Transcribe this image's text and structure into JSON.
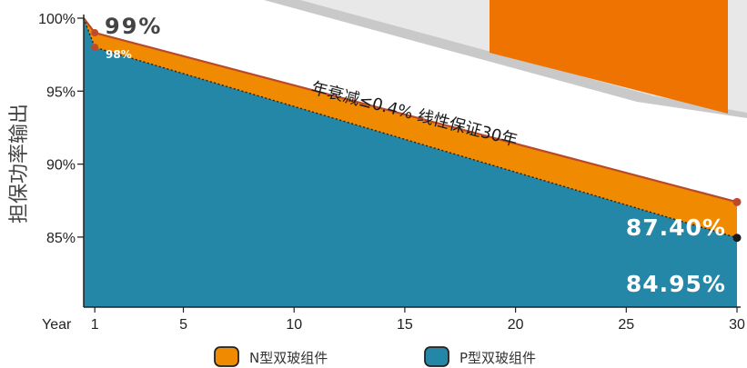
{
  "chart_data": {
    "type": "area",
    "ylabel": "担保功率输出",
    "x_axis_label": "Year",
    "x_ticks": [
      1,
      5,
      10,
      15,
      20,
      25,
      30
    ],
    "y_ticks": [
      "100%",
      "95%",
      "90%",
      "85%"
    ],
    "y_tick_values": [
      100,
      95,
      90,
      85
    ],
    "xlim": [
      0.5,
      30
    ],
    "ylim": [
      80.2,
      100
    ],
    "series": [
      {
        "name": "N型双玻组件",
        "color": "#F08A00",
        "line_color": "#B84A2A",
        "x": [
          0.5,
          1,
          30
        ],
        "values": [
          100,
          99,
          87.4
        ]
      },
      {
        "name": "P型双玻组件",
        "color": "#2587A8",
        "line_color": "#222222",
        "x": [
          0.5,
          1,
          30
        ],
        "values": [
          100,
          98,
          84.95
        ]
      }
    ],
    "annotations": [
      {
        "id": "n-start",
        "text": "99%"
      },
      {
        "id": "p-start",
        "text": "98%"
      },
      {
        "id": "n-end",
        "text": "87.40%"
      },
      {
        "id": "p-end",
        "text": "84.95%"
      },
      {
        "id": "guarantee",
        "text": "年衰减≤0.4% 线性保证30年"
      }
    ],
    "legend": {
      "position": "bottom-center"
    }
  }
}
